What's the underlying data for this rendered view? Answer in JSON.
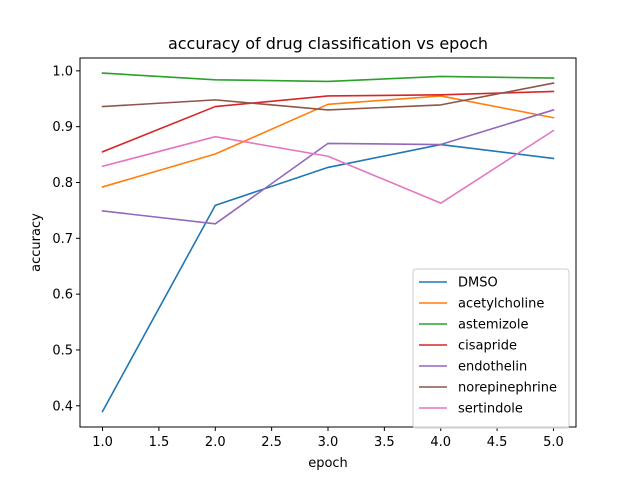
{
  "chart_data": {
    "type": "line",
    "title": "accuracy of drug classification vs epoch",
    "xlabel": "epoch",
    "ylabel": "accuracy",
    "xlim": [
      0.8,
      5.2
    ],
    "ylim": [
      0.362,
      1.023
    ],
    "xticks": [
      1.0,
      1.5,
      2.0,
      2.5,
      3.0,
      3.5,
      4.0,
      4.5,
      5.0
    ],
    "xtick_labels": [
      "1.0",
      "1.5",
      "2.0",
      "2.5",
      "3.0",
      "3.5",
      "4.0",
      "4.5",
      "5.0"
    ],
    "yticks": [
      0.4,
      0.5,
      0.6,
      0.7,
      0.8,
      0.9,
      1.0
    ],
    "ytick_labels": [
      "0.4",
      "0.5",
      "0.6",
      "0.7",
      "0.8",
      "0.9",
      "1.0"
    ],
    "grid": false,
    "legend_position": "bottom-right",
    "x": [
      1,
      2,
      3,
      4,
      5
    ],
    "series": [
      {
        "name": "DMSO",
        "color": "#1f77b4",
        "values": [
          0.39,
          0.759,
          0.827,
          0.868,
          0.843
        ]
      },
      {
        "name": "acetylcholine",
        "color": "#ff7f0e",
        "values": [
          0.792,
          0.851,
          0.94,
          0.955,
          0.916
        ]
      },
      {
        "name": "astemizole",
        "color": "#2ca02c",
        "values": [
          0.996,
          0.984,
          0.981,
          0.99,
          0.987
        ]
      },
      {
        "name": "cisapride",
        "color": "#d62728",
        "values": [
          0.855,
          0.936,
          0.955,
          0.957,
          0.963
        ]
      },
      {
        "name": "endothelin",
        "color": "#9467bd",
        "values": [
          0.749,
          0.726,
          0.87,
          0.868,
          0.93
        ]
      },
      {
        "name": "norepinephrine",
        "color": "#8c564b",
        "values": [
          0.936,
          0.948,
          0.93,
          0.939,
          0.978
        ]
      },
      {
        "name": "sertindole",
        "color": "#e377c2",
        "values": [
          0.829,
          0.882,
          0.847,
          0.763,
          0.893
        ]
      }
    ]
  }
}
